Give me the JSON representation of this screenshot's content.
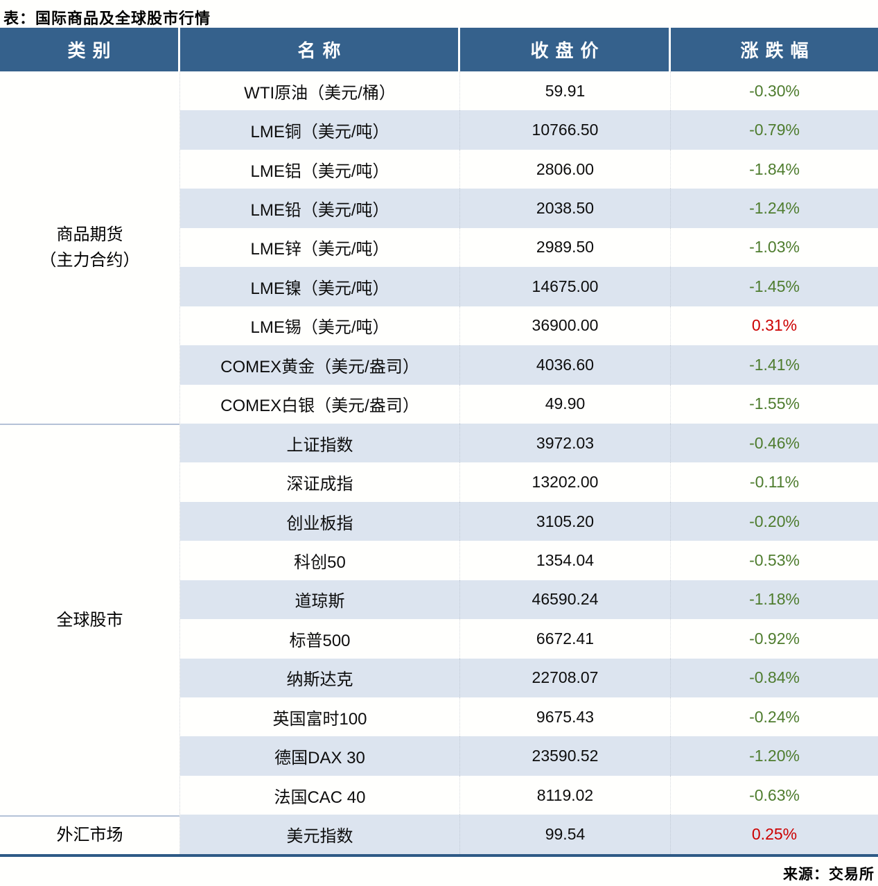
{
  "title": "表：国际商品及全球股市行情",
  "source": "来源：交易所",
  "colors": {
    "header_bg": "#35618c",
    "header_text": "#ffffff",
    "row_alt_bg": "#dce4ef",
    "row_bg": "#fffffd",
    "negative_change": "#4e7c2e",
    "positive_change": "#cc0000",
    "bottom_rule": "#2e5a86",
    "section_divider": "#b4c2d7"
  },
  "table": {
    "headers": [
      "类别",
      "名称",
      "收盘价",
      "涨跌幅"
    ],
    "categories": [
      {
        "label": "商品期货\n（主力合约）",
        "rowspan": 9
      },
      {
        "label": "全球股市",
        "rowspan": 10
      },
      {
        "label": "外汇市场",
        "rowspan": 1
      }
    ],
    "rows": [
      {
        "name": "WTI原油（美元/桶）",
        "close": "59.91",
        "change": "-0.30%",
        "direction": "down"
      },
      {
        "name": "LME铜（美元/吨）",
        "close": "10766.50",
        "change": "-0.79%",
        "direction": "down"
      },
      {
        "name": "LME铝（美元/吨）",
        "close": "2806.00",
        "change": "-1.84%",
        "direction": "down"
      },
      {
        "name": "LME铅（美元/吨）",
        "close": "2038.50",
        "change": "-1.24%",
        "direction": "down"
      },
      {
        "name": "LME锌（美元/吨）",
        "close": "2989.50",
        "change": "-1.03%",
        "direction": "down"
      },
      {
        "name": "LME镍（美元/吨）",
        "close": "14675.00",
        "change": "-1.45%",
        "direction": "down"
      },
      {
        "name": "LME锡（美元/吨）",
        "close": "36900.00",
        "change": "0.31%",
        "direction": "up"
      },
      {
        "name": "COMEX黄金（美元/盎司）",
        "close": "4036.60",
        "change": "-1.41%",
        "direction": "down"
      },
      {
        "name": "COMEX白银（美元/盎司）",
        "close": "49.90",
        "change": "-1.55%",
        "direction": "down"
      },
      {
        "name": "上证指数",
        "close": "3972.03",
        "change": "-0.46%",
        "direction": "down"
      },
      {
        "name": "深证成指",
        "close": "13202.00",
        "change": "-0.11%",
        "direction": "down"
      },
      {
        "name": "创业板指",
        "close": "3105.20",
        "change": "-0.20%",
        "direction": "down"
      },
      {
        "name": "科创50",
        "close": "1354.04",
        "change": "-0.53%",
        "direction": "down"
      },
      {
        "name": "道琼斯",
        "close": "46590.24",
        "change": "-1.18%",
        "direction": "down"
      },
      {
        "name": "标普500",
        "close": "6672.41",
        "change": "-0.92%",
        "direction": "down"
      },
      {
        "name": "纳斯达克",
        "close": "22708.07",
        "change": "-0.84%",
        "direction": "down"
      },
      {
        "name": "英国富时100",
        "close": "9675.43",
        "change": "-0.24%",
        "direction": "down"
      },
      {
        "name": "德国DAX 30",
        "close": "23590.52",
        "change": "-1.20%",
        "direction": "down"
      },
      {
        "name": "法国CAC 40",
        "close": "8119.02",
        "change": "-0.63%",
        "direction": "down"
      },
      {
        "name": "美元指数",
        "close": "99.54",
        "change": "0.25%",
        "direction": "up"
      }
    ]
  },
  "chart_data": {
    "type": "table",
    "title": "表：国际商品及全球股市行情",
    "columns": [
      "类别",
      "名称",
      "收盘价",
      "涨跌幅"
    ],
    "rows": [
      [
        "商品期货（主力合约）",
        "WTI原油（美元/桶）",
        59.91,
        "-0.30%"
      ],
      [
        "商品期货（主力合约）",
        "LME铜（美元/吨）",
        10766.5,
        "-0.79%"
      ],
      [
        "商品期货（主力合约）",
        "LME铝（美元/吨）",
        2806.0,
        "-1.84%"
      ],
      [
        "商品期货（主力合约）",
        "LME铅（美元/吨）",
        2038.5,
        "-1.24%"
      ],
      [
        "商品期货（主力合约）",
        "LME锌（美元/吨）",
        2989.5,
        "-1.03%"
      ],
      [
        "商品期货（主力合约）",
        "LME镍（美元/吨）",
        14675.0,
        "-1.45%"
      ],
      [
        "商品期货（主力合约）",
        "LME锡（美元/吨）",
        36900.0,
        "0.31%"
      ],
      [
        "商品期货（主力合约）",
        "COMEX黄金（美元/盎司）",
        4036.6,
        "-1.41%"
      ],
      [
        "商品期货（主力合约）",
        "COMEX白银（美元/盎司）",
        49.9,
        "-1.55%"
      ],
      [
        "全球股市",
        "上证指数",
        3972.03,
        "-0.46%"
      ],
      [
        "全球股市",
        "深证成指",
        13202.0,
        "-0.11%"
      ],
      [
        "全球股市",
        "创业板指",
        3105.2,
        "-0.20%"
      ],
      [
        "全球股市",
        "科创50",
        1354.04,
        "-0.53%"
      ],
      [
        "全球股市",
        "道琼斯",
        46590.24,
        "-1.18%"
      ],
      [
        "全球股市",
        "标普500",
        6672.41,
        "-0.92%"
      ],
      [
        "全球股市",
        "纳斯达克",
        22708.07,
        "-0.84%"
      ],
      [
        "全球股市",
        "英国富时100",
        9675.43,
        "-0.24%"
      ],
      [
        "全球股市",
        "德国DAX 30",
        23590.52,
        "-1.20%"
      ],
      [
        "全球股市",
        "法国CAC 40",
        8119.02,
        "-0.63%"
      ],
      [
        "外汇市场",
        "美元指数",
        99.54,
        "0.25%"
      ]
    ],
    "notes": "负值涨跌幅为绿色，正值为红色",
    "source": "来源：交易所"
  }
}
